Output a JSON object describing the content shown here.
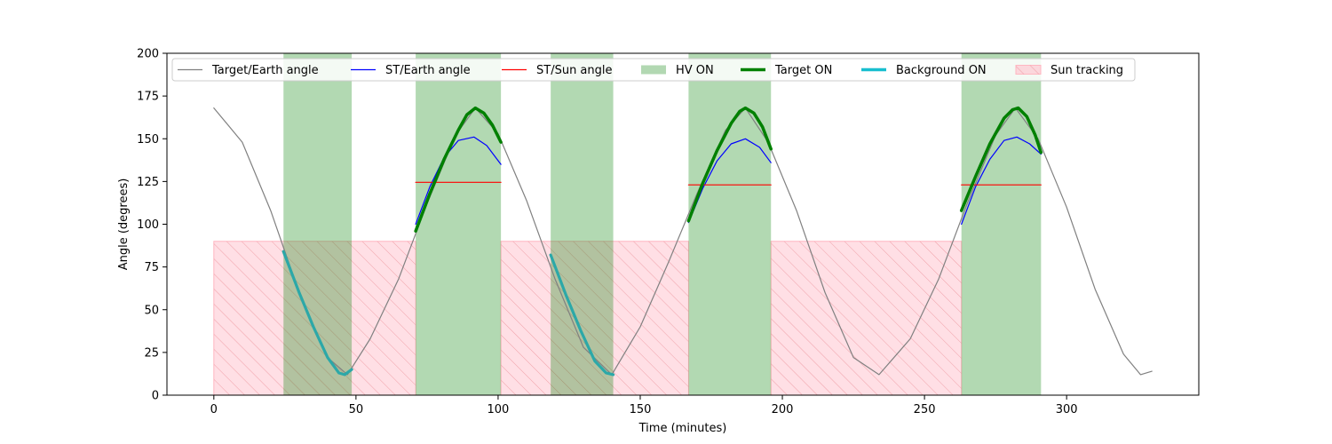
{
  "chart_data": {
    "type": "line",
    "title": "",
    "xlabel": "Time (minutes)",
    "ylabel": "Angle (degrees)",
    "xlim": [
      -16.5,
      346.5
    ],
    "ylim": [
      0,
      200
    ],
    "xticks": [
      0,
      50,
      100,
      150,
      200,
      250,
      300
    ],
    "yticks": [
      0,
      25,
      50,
      75,
      100,
      125,
      150,
      175,
      200
    ],
    "grid": false,
    "legend_position": "top",
    "legend": [
      {
        "label": "Target/Earth angle",
        "kind": "line",
        "color": "#808080"
      },
      {
        "label": "ST/Earth angle",
        "kind": "line",
        "color": "#0000ff"
      },
      {
        "label": "ST/Sun angle",
        "kind": "line",
        "color": "#ff0000"
      },
      {
        "label": "HV ON",
        "kind": "patch",
        "color": "#b2d8b2"
      },
      {
        "label": "Target ON",
        "kind": "thickline",
        "color": "#008000"
      },
      {
        "label": "Background ON",
        "kind": "thickline",
        "color": "#17becf"
      },
      {
        "label": "Sun tracking",
        "kind": "hatch",
        "color": "#ffc0cb"
      }
    ],
    "series": [
      {
        "name": "Target/Earth angle",
        "color": "#808080",
        "x": [
          0,
          10,
          20,
          30,
          40,
          47,
          55,
          65,
          75,
          85,
          92,
          100,
          110,
          120,
          130,
          140,
          150,
          160,
          170,
          180,
          187,
          195,
          205,
          215,
          225,
          234,
          245,
          255,
          265,
          275,
          282,
          290,
          300,
          310,
          320,
          326,
          330
        ],
        "y": [
          168,
          148,
          108,
          60,
          22,
          12,
          33,
          68,
          112,
          152,
          168,
          153,
          114,
          68,
          28,
          12,
          40,
          78,
          118,
          155,
          168,
          148,
          108,
          60,
          22,
          12,
          33,
          68,
          112,
          152,
          168,
          150,
          110,
          62,
          24,
          12,
          14
        ]
      },
      {
        "name": "ST/Earth angle",
        "color": "#0000ff",
        "segments": [
          {
            "x": [
              71,
              76,
              81,
              86,
              91.5,
              96,
              101
            ],
            "y": [
              100,
              122,
              139,
              149,
              151,
              146,
              135
            ]
          },
          {
            "x": [
              167,
              172,
              177,
              182,
              187,
              192,
              196
            ],
            "y": [
              101,
              121,
              137,
              147,
              150,
              145,
              136
            ]
          },
          {
            "x": [
              263,
              268,
              273,
              278,
              282.5,
              287,
              291
            ],
            "y": [
              100,
              122,
              138,
              149,
              151,
              147,
              141
            ]
          }
        ]
      },
      {
        "name": "ST/Sun angle",
        "color": "#ff0000",
        "segments": [
          {
            "x": [
              71,
              101
            ],
            "y": [
              124.5,
              124.5
            ]
          },
          {
            "x": [
              167,
              196
            ],
            "y": [
              123,
              123
            ]
          },
          {
            "x": [
              263,
              291
            ],
            "y": [
              123,
              123
            ]
          }
        ]
      },
      {
        "name": "Target ON",
        "color": "#008000",
        "segments": [
          {
            "x": [
              71,
              76,
              81,
              86,
              89,
              92,
              95,
              98,
              101
            ],
            "y": [
              96,
              118,
              138,
              155,
              164,
              168,
              165,
              158,
              148
            ]
          },
          {
            "x": [
              167,
              172,
              177,
              182,
              185,
              187,
              190,
              193,
              196
            ],
            "y": [
              102,
              124,
              143,
              159,
              166,
              168,
              165,
              157,
              144
            ]
          },
          {
            "x": [
              263,
              268,
              273,
              278,
              281,
              283,
              286,
              289,
              291
            ],
            "y": [
              108,
              128,
              147,
              162,
              167,
              168,
              163,
              152,
              142
            ]
          }
        ]
      },
      {
        "name": "Background ON",
        "color": "#2ca8a8",
        "segments": [
          {
            "x": [
              24.5,
              30,
              35,
              40,
              44,
              46,
              48.5
            ],
            "y": [
              84,
              60,
              40,
              22,
              13,
              12,
              15
            ]
          },
          {
            "x": [
              118.5,
              124,
              129,
              134,
              138,
              140.5
            ],
            "y": [
              82,
              58,
              38,
              20,
              13,
              12
            ]
          }
        ]
      }
    ],
    "hv_on": [
      [
        24.5,
        48.5
      ],
      [
        71,
        101
      ],
      [
        118.5,
        140.5
      ],
      [
        167,
        196
      ],
      [
        263,
        291
      ]
    ],
    "sun_tracking": {
      "y_range": [
        0,
        90
      ],
      "intervals": [
        [
          0,
          71
        ],
        [
          101,
          167
        ],
        [
          196,
          263
        ]
      ]
    }
  }
}
